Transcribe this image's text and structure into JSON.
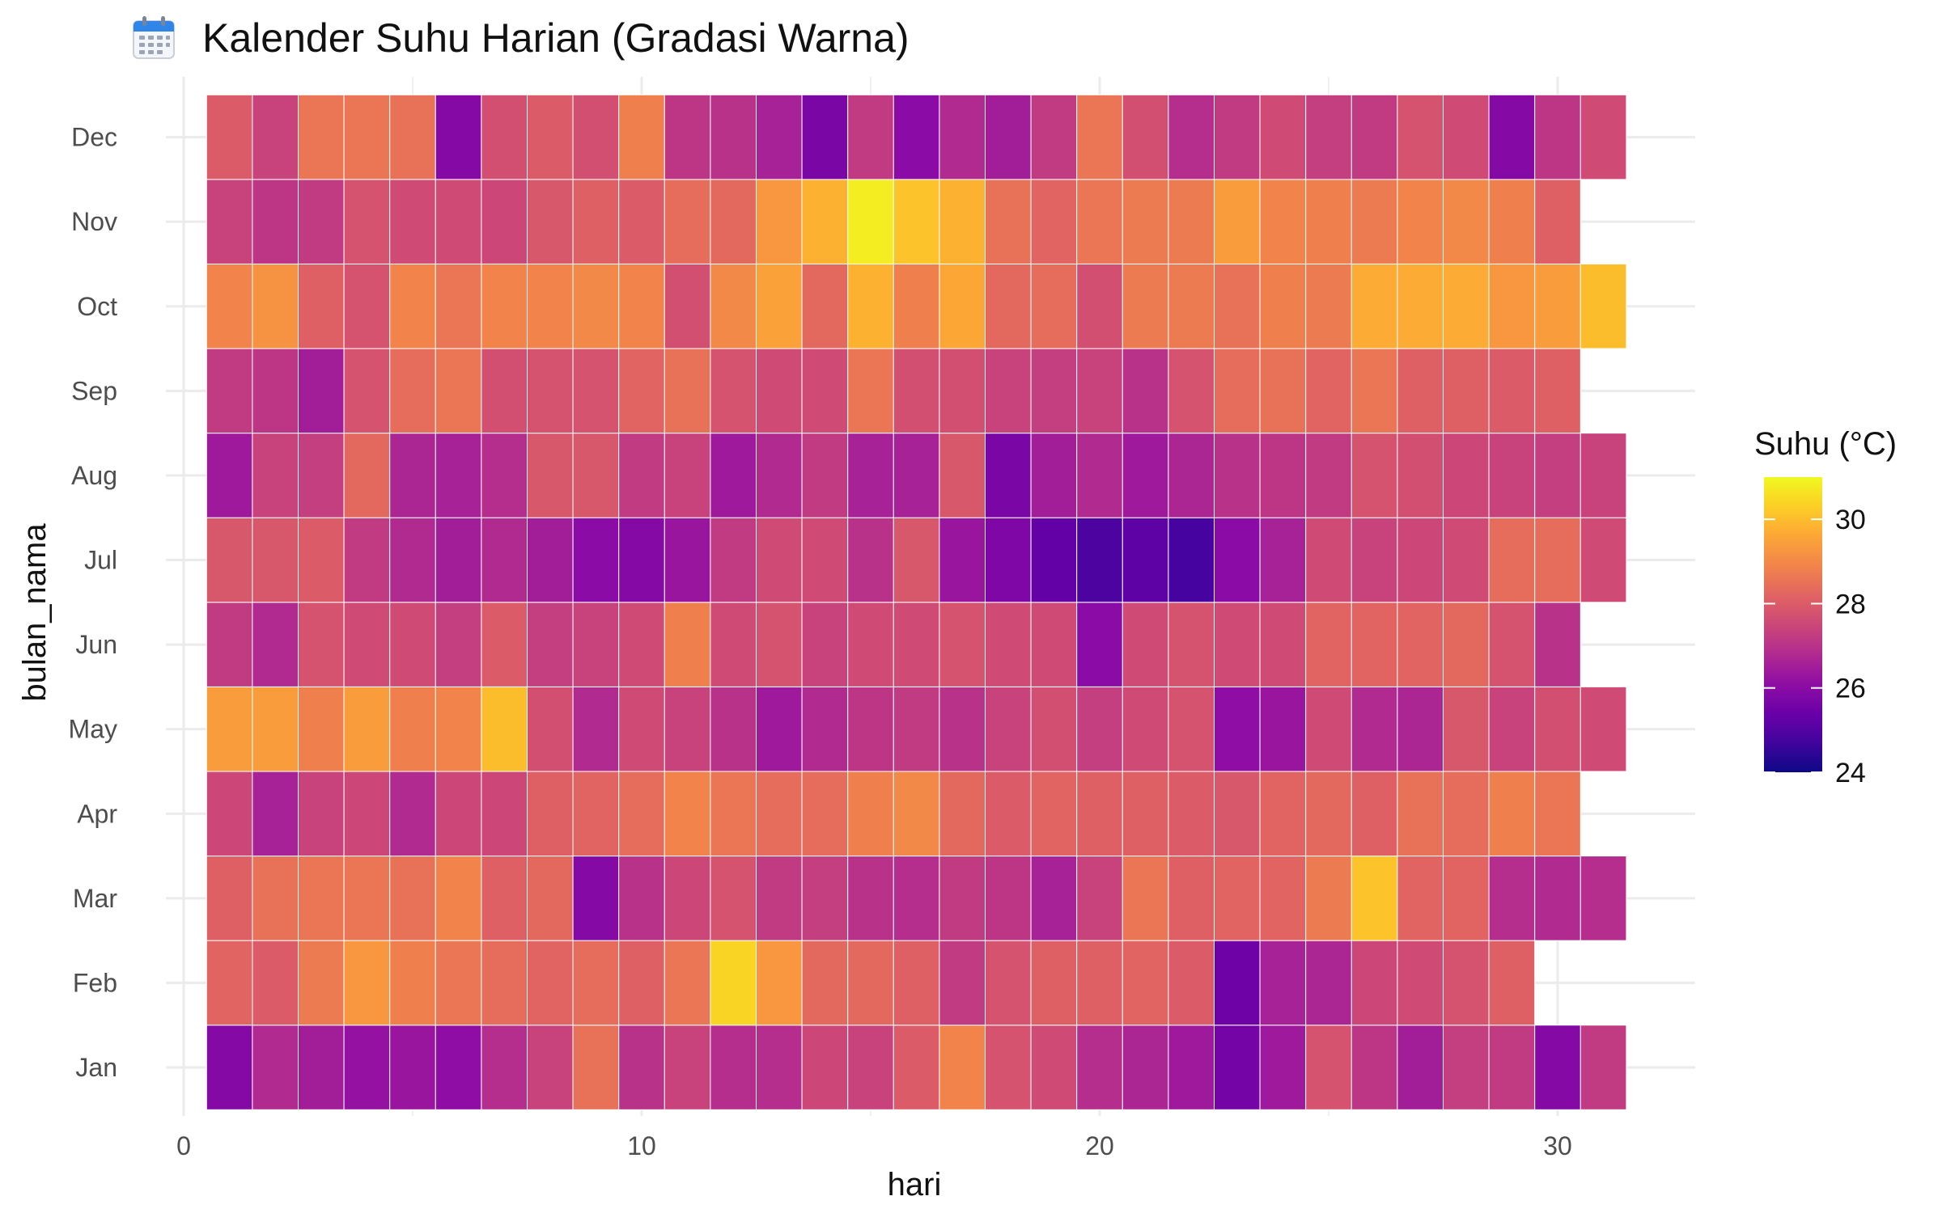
{
  "chart_data": {
    "type": "heatmap",
    "title": "Kalender Suhu Harian (Gradasi Warna)",
    "title_icon": "calendar-icon",
    "xlabel": "hari",
    "ylabel": "bulan_nama",
    "xlim": [
      0,
      33
    ],
    "x_ticks": [
      "0",
      "10",
      "20",
      "30"
    ],
    "x_tick_values": [
      0,
      10,
      20,
      30
    ],
    "y_categories": [
      "Jan",
      "Feb",
      "Mar",
      "Apr",
      "May",
      "Jun",
      "Jul",
      "Aug",
      "Sep",
      "Oct",
      "Nov",
      "Dec"
    ],
    "grid": true,
    "legend": {
      "title": "Suhu (°C)",
      "position": "right",
      "min": 24,
      "max": 31,
      "ticks": [
        "24",
        "26",
        "28",
        "30"
      ],
      "tick_values": [
        24,
        26,
        28,
        30
      ],
      "palette": "plasma"
    },
    "rows": [
      {
        "month": "Jan",
        "values": [
          25.9,
          26.8,
          26.5,
          26.2,
          26.3,
          26.1,
          26.9,
          27.4,
          28.5,
          27.0,
          27.4,
          26.9,
          26.9,
          27.5,
          27.4,
          28.0,
          28.9,
          27.8,
          27.6,
          26.9,
          26.7,
          26.4,
          25.6,
          26.4,
          27.8,
          27.1,
          26.5,
          27.3,
          27.2,
          25.9,
          27.2
        ]
      },
      {
        "month": "Feb",
        "values": [
          28.2,
          28.0,
          28.7,
          29.3,
          28.8,
          28.6,
          28.4,
          28.2,
          28.4,
          28.1,
          28.6,
          30.4,
          29.3,
          28.3,
          28.3,
          28.1,
          27.2,
          27.8,
          28.1,
          28.1,
          28.2,
          28.0,
          25.5,
          26.6,
          26.7,
          27.5,
          27.6,
          27.8,
          28.1
        ]
      },
      {
        "month": "Mar",
        "values": [
          28.1,
          28.5,
          28.6,
          28.6,
          28.5,
          28.9,
          28.1,
          28.3,
          25.9,
          27.0,
          27.5,
          27.8,
          27.2,
          27.3,
          27.0,
          26.9,
          27.2,
          27.1,
          26.6,
          27.4,
          28.6,
          28.1,
          28.2,
          28.2,
          28.7,
          30.1,
          28.2,
          28.2,
          26.9,
          26.8,
          26.9
        ]
      },
      {
        "month": "Apr",
        "values": [
          27.5,
          26.6,
          27.4,
          27.5,
          26.8,
          27.5,
          27.5,
          28.1,
          28.2,
          28.4,
          28.9,
          28.6,
          28.4,
          28.4,
          28.8,
          29.0,
          28.3,
          28.0,
          28.2,
          28.1,
          28.1,
          28.0,
          27.9,
          28.2,
          28.3,
          28.1,
          28.5,
          28.4,
          28.8,
          28.6
        ]
      },
      {
        "month": "May",
        "values": [
          29.4,
          29.4,
          28.8,
          29.4,
          28.8,
          28.9,
          30.0,
          27.7,
          26.8,
          27.6,
          27.4,
          27.0,
          26.4,
          26.8,
          27.1,
          27.2,
          27.0,
          27.4,
          27.7,
          27.3,
          27.6,
          27.8,
          26.1,
          26.3,
          27.6,
          26.8,
          26.7,
          27.9,
          27.4,
          27.7,
          27.6
        ]
      },
      {
        "month": "Jun",
        "values": [
          27.2,
          26.8,
          27.8,
          27.6,
          27.6,
          27.3,
          28.0,
          27.3,
          27.4,
          27.6,
          28.8,
          27.6,
          27.8,
          27.4,
          27.6,
          27.6,
          27.8,
          27.6,
          27.6,
          26.0,
          27.6,
          27.8,
          27.6,
          27.6,
          28.2,
          28.2,
          28.2,
          28.3,
          27.8,
          27.0
        ]
      },
      {
        "month": "Jul",
        "values": [
          27.9,
          27.9,
          28.0,
          27.2,
          26.8,
          26.5,
          26.8,
          26.5,
          26.0,
          25.9,
          26.3,
          27.2,
          27.6,
          27.6,
          27.0,
          27.9,
          26.3,
          25.8,
          25.3,
          24.9,
          25.2,
          24.8,
          26.0,
          26.6,
          27.6,
          27.4,
          27.5,
          27.6,
          28.4,
          28.4,
          27.6
        ]
      },
      {
        "month": "Aug",
        "values": [
          26.4,
          27.4,
          27.3,
          28.3,
          26.7,
          26.6,
          26.9,
          27.9,
          27.9,
          27.2,
          27.4,
          26.4,
          26.8,
          27.2,
          26.6,
          26.6,
          27.9,
          25.7,
          26.5,
          26.8,
          26.4,
          26.7,
          27.0,
          27.1,
          27.2,
          27.8,
          27.7,
          27.5,
          27.4,
          27.3,
          27.4
        ]
      },
      {
        "month": "Sep",
        "values": [
          27.2,
          27.1,
          26.5,
          27.8,
          28.4,
          28.6,
          27.7,
          27.8,
          27.8,
          28.2,
          28.5,
          27.8,
          27.6,
          27.6,
          28.6,
          27.7,
          27.7,
          27.4,
          27.3,
          27.4,
          27.0,
          27.8,
          28.4,
          28.5,
          28.2,
          28.6,
          28.1,
          28.1,
          28.0,
          28.1
        ]
      },
      {
        "month": "Oct",
        "values": [
          28.9,
          29.2,
          28.1,
          27.8,
          28.9,
          28.6,
          28.9,
          28.9,
          29.0,
          28.9,
          27.7,
          29.0,
          29.5,
          28.3,
          29.8,
          28.8,
          29.6,
          28.3,
          28.4,
          27.7,
          28.7,
          28.7,
          28.5,
          28.8,
          28.7,
          29.7,
          29.7,
          29.7,
          29.3,
          29.4,
          30.0
        ]
      },
      {
        "month": "Nov",
        "values": [
          27.4,
          27.1,
          27.2,
          27.8,
          27.6,
          27.6,
          27.5,
          27.9,
          28.1,
          28.0,
          28.4,
          28.3,
          29.3,
          29.8,
          30.8,
          30.1,
          29.8,
          28.5,
          28.2,
          28.6,
          28.7,
          28.7,
          29.4,
          28.9,
          28.8,
          28.7,
          28.9,
          29.0,
          28.8,
          28.1
        ]
      },
      {
        "month": "Dec",
        "values": [
          28.0,
          27.4,
          28.6,
          28.6,
          28.5,
          25.9,
          27.7,
          28.0,
          27.7,
          28.8,
          27.1,
          27.0,
          26.6,
          25.7,
          27.2,
          26.0,
          26.8,
          26.5,
          27.2,
          28.6,
          27.7,
          26.9,
          27.2,
          27.6,
          27.3,
          27.2,
          27.8,
          27.6,
          25.9,
          27.1,
          27.6
        ]
      }
    ]
  }
}
